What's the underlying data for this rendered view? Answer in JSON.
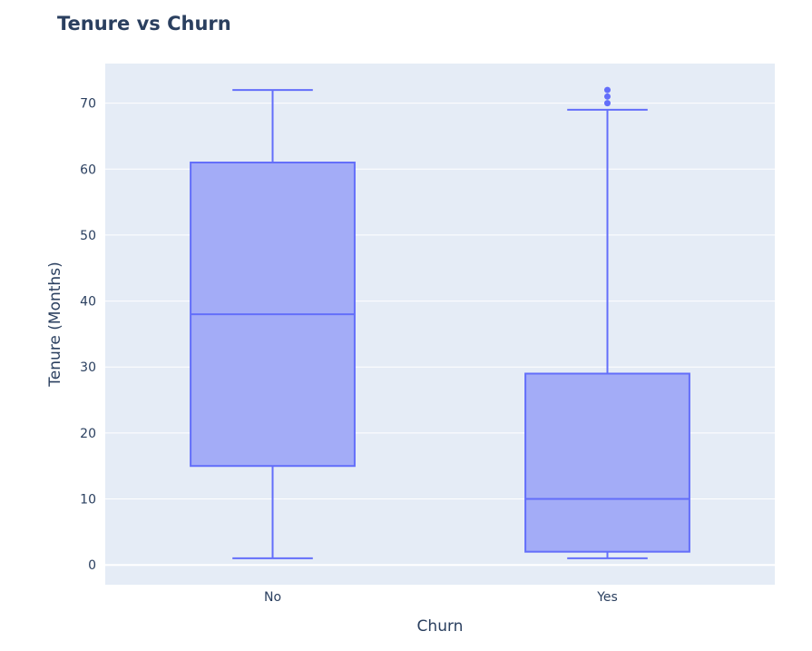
{
  "chart_data": {
    "type": "box",
    "title": "Tenure vs Churn",
    "xlabel": "Churn",
    "ylabel": "Tenure (Months)",
    "categories": [
      "No",
      "Yes"
    ],
    "ylim": [
      -3,
      76
    ],
    "yticks": [
      0,
      10,
      20,
      30,
      40,
      50,
      60,
      70
    ],
    "grid": true,
    "legend": "none",
    "colors": {
      "plot_bg": "#e5ecf6",
      "box_fill": "#a3acf7",
      "box_line": "#636efa",
      "grid": "#ffffff",
      "text": "#2a3f5f"
    },
    "series": [
      {
        "category": "No",
        "min": 1,
        "q1": 15,
        "median": 38,
        "q3": 61,
        "max": 72,
        "outliers": []
      },
      {
        "category": "Yes",
        "min": 1,
        "q1": 2,
        "median": 10,
        "q3": 29,
        "max": 69,
        "outliers": [
          70,
          71,
          72
        ]
      }
    ]
  }
}
